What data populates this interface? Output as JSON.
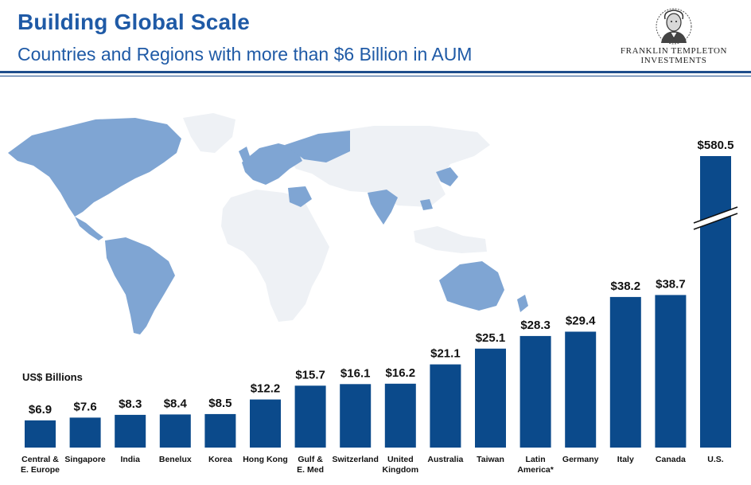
{
  "header": {
    "title": "Building Global Scale",
    "subtitle": "Countries and Regions with more than $6 Billion in AUM"
  },
  "logo": {
    "line1": "FRANKLIN TEMPLETON",
    "line2": "INVESTMENTS",
    "icon": "benjamin-franklin-portrait-icon"
  },
  "colors": {
    "bar": "#0b4a8b",
    "title": "#1f5aa6",
    "map_highlight": "#7fa5d3",
    "map_base": "#eef1f5"
  },
  "chart_data": {
    "type": "bar",
    "ylabel": "US$ Billions",
    "axis_break": true,
    "categories": [
      [
        "Central &",
        "E. Europe"
      ],
      [
        "Singapore"
      ],
      [
        "India"
      ],
      [
        "Benelux"
      ],
      [
        "Korea"
      ],
      [
        "Hong Kong"
      ],
      [
        "Gulf &",
        "E. Med"
      ],
      [
        "Switzerland"
      ],
      [
        "United",
        "Kingdom"
      ],
      [
        "Australia"
      ],
      [
        "Taiwan"
      ],
      [
        "Latin",
        "America*"
      ],
      [
        "Germany"
      ],
      [
        "Italy"
      ],
      [
        "Canada"
      ],
      [
        "U.S."
      ]
    ],
    "values": [
      6.9,
      7.6,
      8.3,
      8.4,
      8.5,
      12.2,
      15.7,
      16.1,
      16.2,
      21.1,
      25.1,
      28.3,
      29.4,
      38.2,
      38.7,
      580.5
    ],
    "value_labels": [
      "$6.9",
      "$7.6",
      "$8.3",
      "$8.4",
      "$8.5",
      "$12.2",
      "$15.7",
      "$16.1",
      "$16.2",
      "$21.1",
      "$25.1",
      "$28.3",
      "$29.4",
      "$38.2",
      "$38.7",
      "$580.5"
    ]
  }
}
